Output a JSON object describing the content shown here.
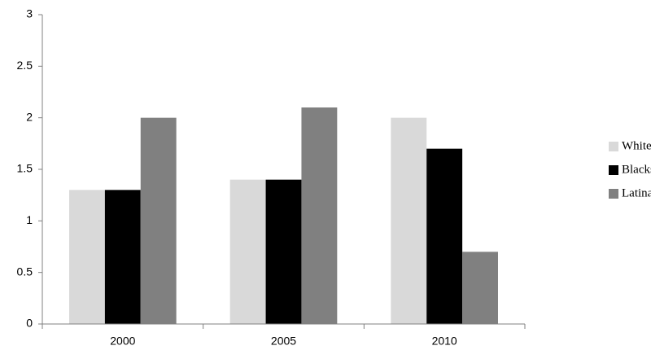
{
  "chart_data": {
    "type": "bar",
    "categories": [
      "2000",
      "2005",
      "2010"
    ],
    "series": [
      {
        "name": "Whites, time ns",
        "color": "#d9d9d9",
        "values": [
          1.3,
          1.4,
          2.0
        ]
      },
      {
        "name": "Blacks, time ns",
        "color": "#000000",
        "values": [
          1.3,
          1.4,
          1.7
        ]
      },
      {
        "name": "Latinas, time ns",
        "color": "#808080",
        "values": [
          2.0,
          2.1,
          0.7
        ]
      }
    ],
    "ylim": [
      0,
      3
    ],
    "yticks": [
      0,
      0.5,
      1,
      1.5,
      2,
      2.5,
      3
    ],
    "grid": false,
    "legend": "right"
  }
}
